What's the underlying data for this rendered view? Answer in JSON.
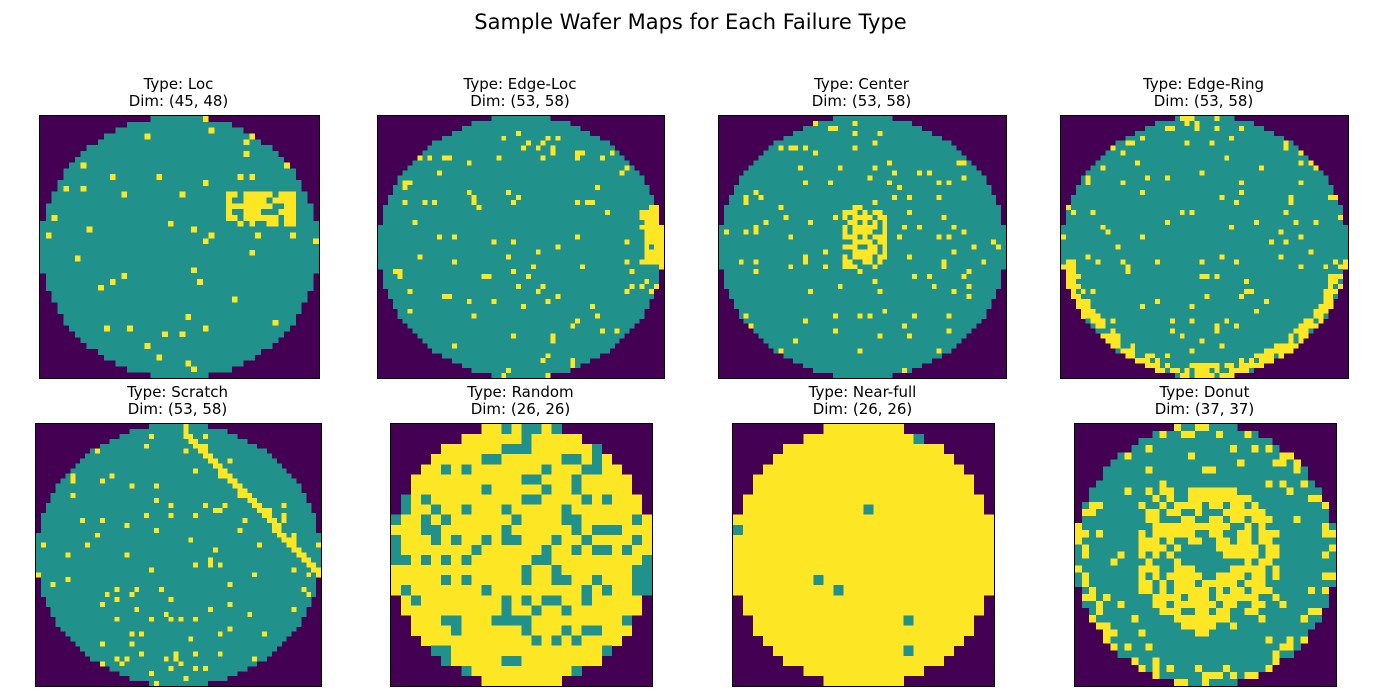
{
  "figure": {
    "title": "Sample Wafer Maps for Each Failure Type"
  },
  "colors": {
    "background": "#440154",
    "pass": "#21918c",
    "fail": "#fde725"
  },
  "chart_data": [
    {
      "type": "heatmap",
      "title": "Type: Loc",
      "subtitle": "Dim: (45, 48)",
      "grid": false,
      "dims": [
        45,
        48
      ],
      "colormap": [
        "#440154",
        "#21918c",
        "#fde725"
      ],
      "cluster": {
        "pattern": "local",
        "center": [
          0.78,
          0.35
        ],
        "size": 0.14
      },
      "scatter_density": 0.035
    },
    {
      "type": "heatmap",
      "title": "Type: Edge-Loc",
      "subtitle": "Dim: (53, 58)",
      "grid": false,
      "dims": [
        53,
        58
      ],
      "colormap": [
        "#440154",
        "#21918c",
        "#fde725"
      ],
      "cluster": {
        "pattern": "edge-local",
        "center": [
          0.98,
          0.45
        ],
        "size": 0.12
      },
      "scatter_density": 0.045
    },
    {
      "type": "heatmap",
      "title": "Type: Center",
      "subtitle": "Dim: (53, 58)",
      "grid": false,
      "dims": [
        53,
        58
      ],
      "colormap": [
        "#440154",
        "#21918c",
        "#fde725"
      ],
      "cluster": {
        "pattern": "center",
        "center": [
          0.5,
          0.46
        ],
        "size": 0.1
      },
      "scatter_density": 0.05
    },
    {
      "type": "heatmap",
      "title": "Type: Edge-Ring",
      "subtitle": "Dim: (53, 58)",
      "grid": false,
      "dims": [
        53,
        58
      ],
      "colormap": [
        "#440154",
        "#21918c",
        "#fde725"
      ],
      "cluster": {
        "pattern": "edge-ring",
        "center": [
          0.5,
          0.8
        ],
        "size": 0.1
      },
      "scatter_density": 0.045
    },
    {
      "type": "heatmap",
      "title": "Type: Scratch",
      "subtitle": "Dim: (53, 58)",
      "grid": false,
      "dims": [
        53,
        58
      ],
      "colormap": [
        "#440154",
        "#21918c",
        "#fde725"
      ],
      "cluster": {
        "pattern": "scratch",
        "center": [
          0.5,
          0.5
        ],
        "size": 0.05
      },
      "scatter_density": 0.045
    },
    {
      "type": "heatmap",
      "title": "Type: Random",
      "subtitle": "Dim: (26, 26)",
      "grid": false,
      "dims": [
        26,
        26
      ],
      "colormap": [
        "#440154",
        "#21918c",
        "#fde725"
      ],
      "cluster": {
        "pattern": "random",
        "center": [
          0.5,
          0.5
        ],
        "size": 0.0
      },
      "scatter_density": 0.5
    },
    {
      "type": "heatmap",
      "title": "Type: Near-full",
      "subtitle": "Dim: (26, 26)",
      "grid": false,
      "dims": [
        26,
        26
      ],
      "colormap": [
        "#440154",
        "#21918c",
        "#fde725"
      ],
      "cluster": {
        "pattern": "near-full",
        "center": [
          0.5,
          0.5
        ],
        "size": 0.0
      },
      "scatter_density": 0.9
    },
    {
      "type": "heatmap",
      "title": "Type: Donut",
      "subtitle": "Dim: (37, 37)",
      "grid": false,
      "dims": [
        37,
        37
      ],
      "colormap": [
        "#440154",
        "#21918c",
        "#fde725"
      ],
      "cluster": {
        "pattern": "donut",
        "center": [
          0.5,
          0.5
        ],
        "size": 0.28
      },
      "scatter_density": 0.06
    }
  ]
}
